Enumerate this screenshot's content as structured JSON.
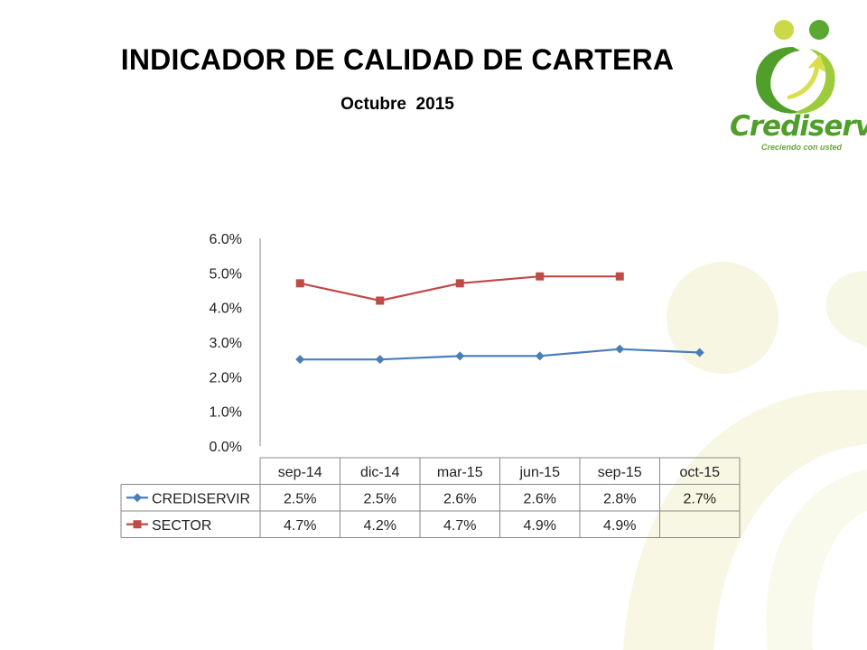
{
  "slide": {
    "title": "INDICADOR DE CALIDAD DE CARTERA",
    "subtitle": "Octubre  2015"
  },
  "logo": {
    "brand": "Crediservir",
    "tagline": "Creciendo con usted",
    "colors": {
      "green": "#4f9f2a",
      "light_green": "#9ccb3b",
      "yellow": "#d8df4a"
    }
  },
  "chart_data": {
    "type": "line",
    "categories": [
      "sep-14",
      "dic-14",
      "mar-15",
      "jun-15",
      "sep-15",
      "oct-15"
    ],
    "series": [
      {
        "name": "CREDISERVIR",
        "values": [
          2.5,
          2.5,
          2.6,
          2.6,
          2.8,
          2.7
        ],
        "labels": [
          "2.5%",
          "2.5%",
          "2.6%",
          "2.6%",
          "2.8%",
          "2.7%"
        ],
        "color": "#4a7ebb",
        "marker": "diamond"
      },
      {
        "name": "SECTOR",
        "values": [
          4.7,
          4.2,
          4.7,
          4.9,
          4.9,
          null
        ],
        "labels": [
          "4.7%",
          "4.2%",
          "4.7%",
          "4.9%",
          "4.9%",
          ""
        ],
        "color": "#be4b48",
        "marker": "square"
      }
    ],
    "ylim": [
      0,
      6
    ],
    "yticks": [
      "0.0%",
      "1.0%",
      "2.0%",
      "3.0%",
      "4.0%",
      "5.0%",
      "6.0%"
    ],
    "grid": false,
    "data_table": true
  }
}
